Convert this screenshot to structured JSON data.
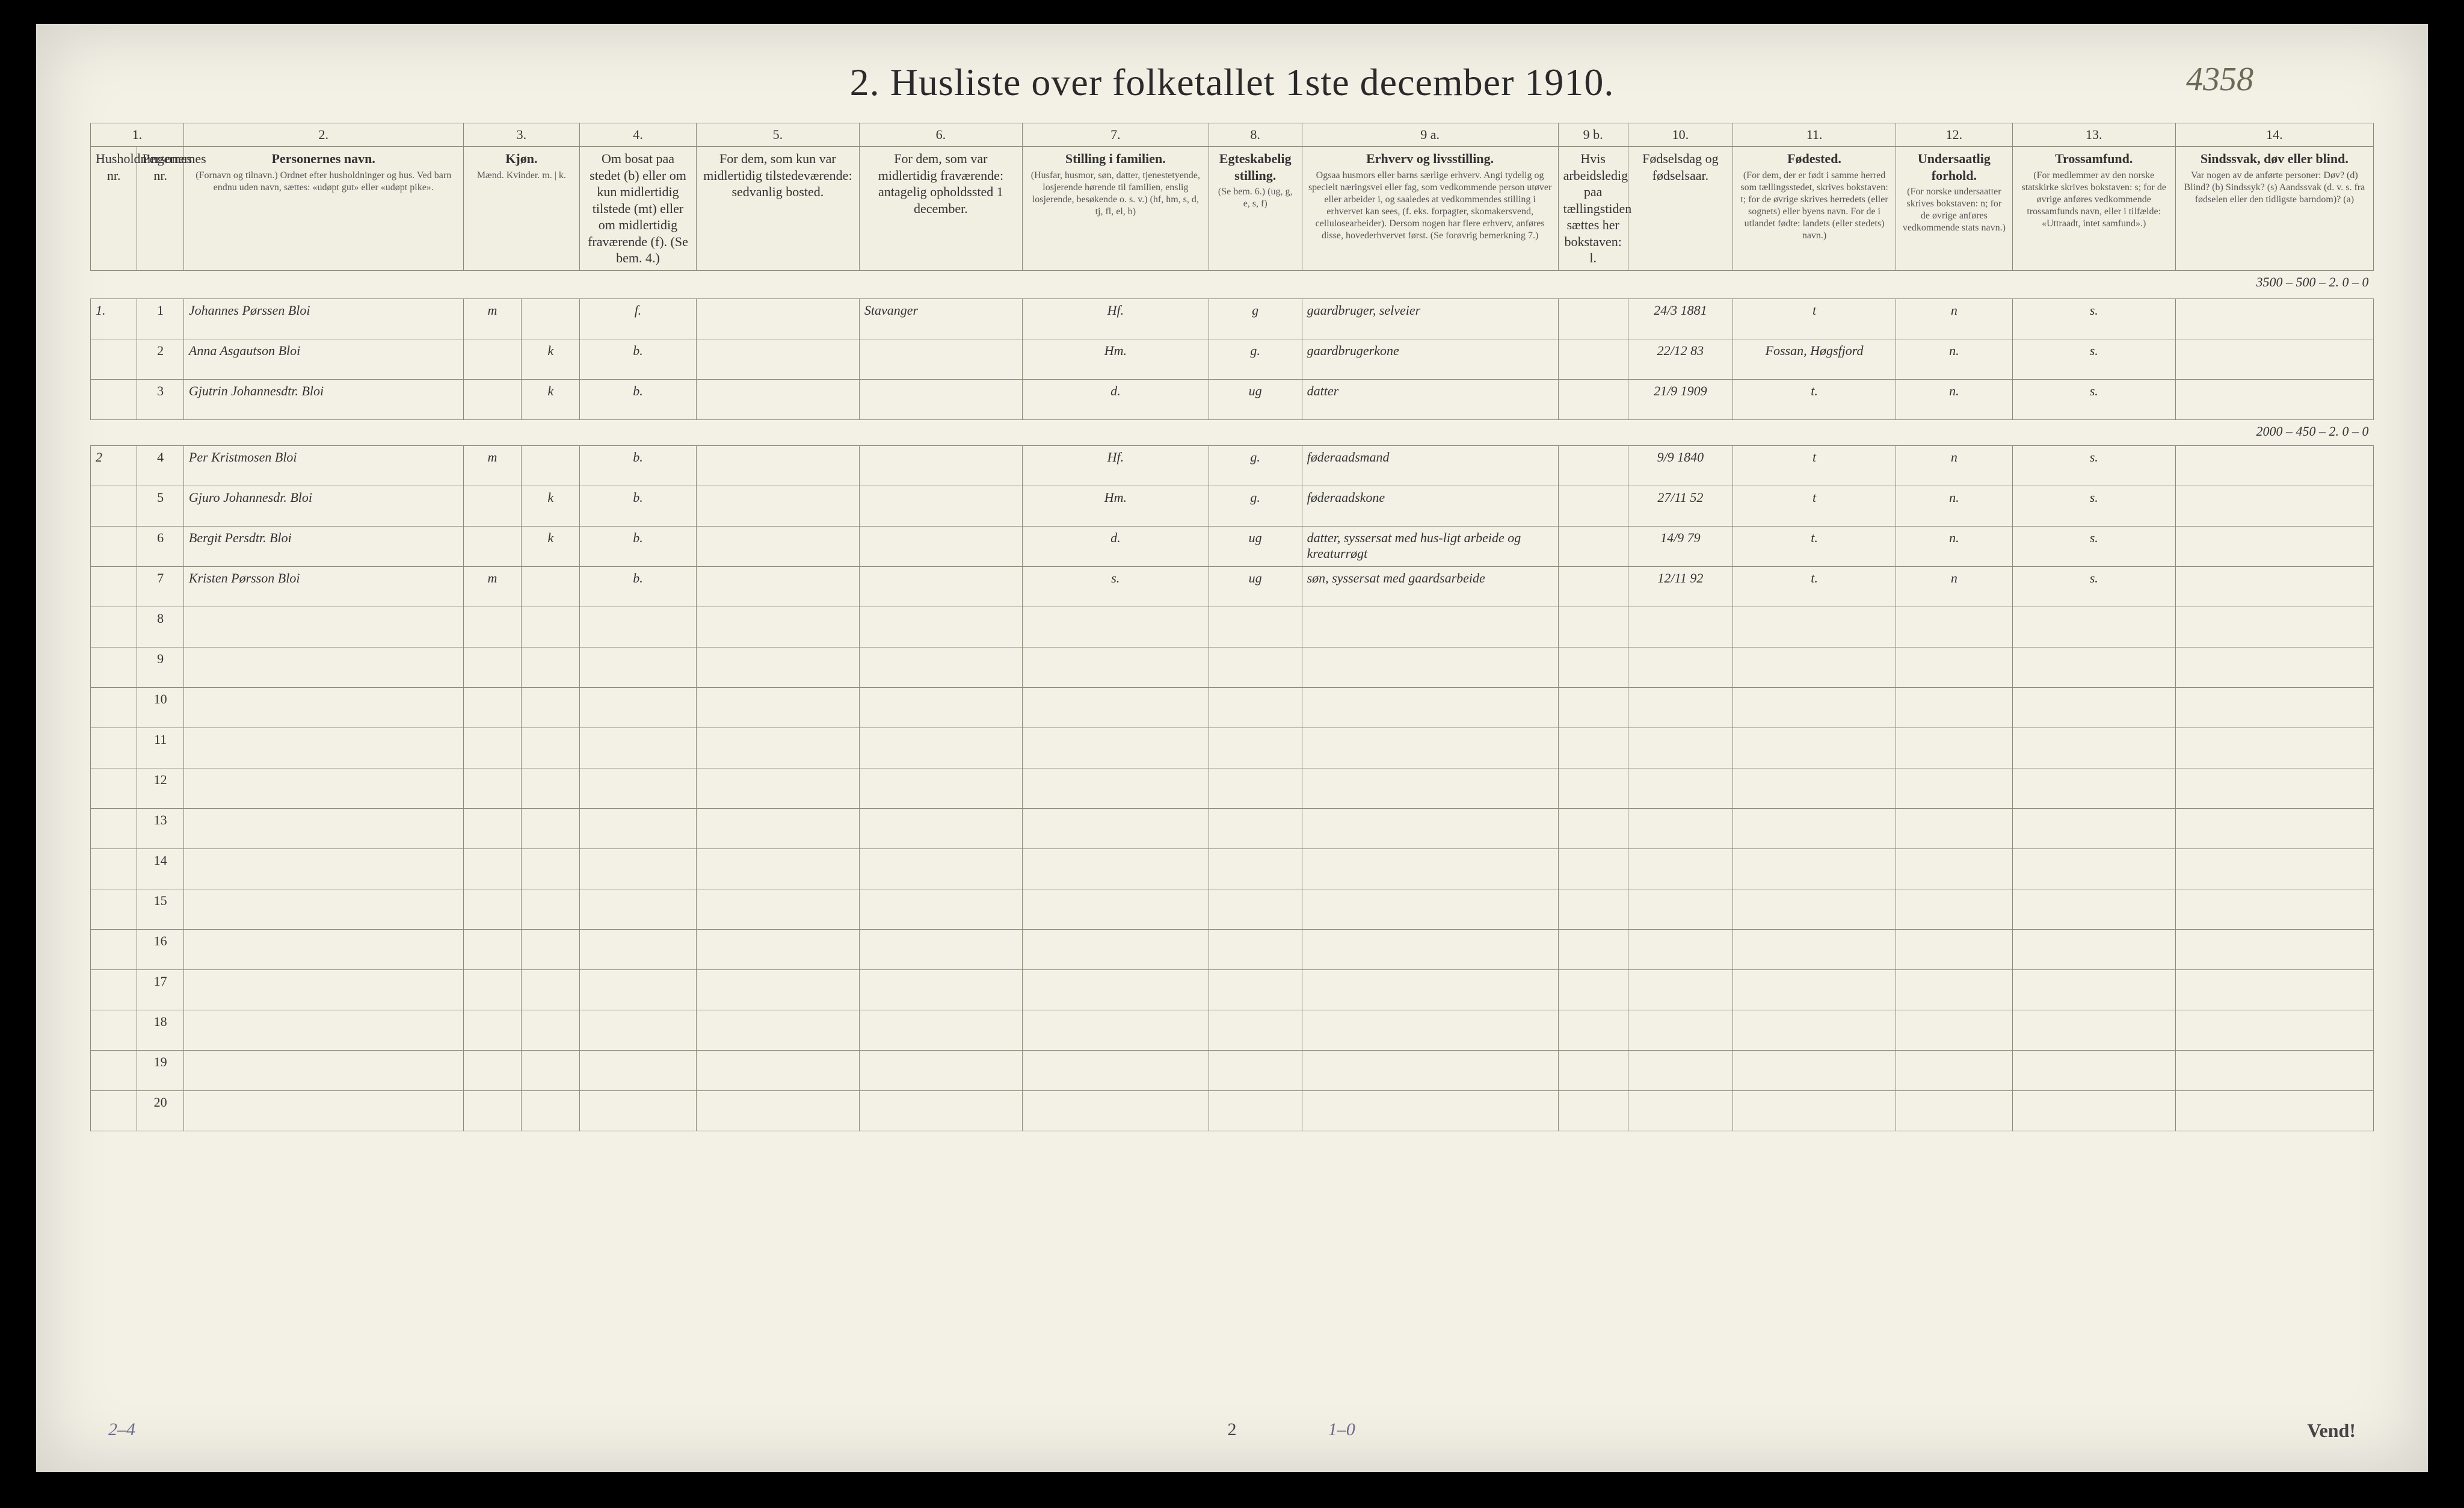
{
  "page": {
    "title": "2.  Husliste over folketallet 1ste december 1910.",
    "marginal_number": "4358",
    "footer_left": "2–4",
    "footer_mid_left": "1–0",
    "footer_center": "2",
    "footer_right": "Vend!",
    "colors": {
      "paper": "#f3f0e6",
      "rule": "#8a8a7a",
      "ink": "#2b2b2b",
      "pencil": "#6a6a88"
    }
  },
  "columns": {
    "numbers": [
      "1.",
      "",
      "2.",
      "3.",
      "",
      "4.",
      "5.",
      "6.",
      "7.",
      "8.",
      "9 a.",
      "9 b.",
      "10.",
      "11.",
      "12.",
      "13.",
      "14."
    ],
    "heads": {
      "c1": "Husholdningernes nr.",
      "c1b": "Personernes nr.",
      "c2": "Personernes navn.",
      "c2_sub": "(Fornavn og tilnavn.) Ordnet efter husholdninger og hus. Ved barn endnu uden navn, sættes: «udøpt gut» eller «udøpt pike».",
      "c3": "Kjøn.",
      "c3_sub": "Mænd.  Kvinder.  m. | k.",
      "c4": "Om bosat paa stedet (b) eller om kun midlertidig tilstede (mt) eller om midlertidig fraværende (f). (Se bem. 4.)",
      "c5": "For dem, som kun var midlertidig tilstedeværende: sedvanlig bosted.",
      "c6": "For dem, som var midlertidig fraværende: antagelig opholdssted 1 december.",
      "c7": "Stilling i familien.",
      "c7_sub": "(Husfar, husmor, søn, datter, tjenestetyende, losjerende hørende til familien, enslig losjerende, besøkende o. s. v.)  (hf, hm, s, d, tj, fl, el, b)",
      "c8": "Egteskabelig stilling.",
      "c8_sub": "(Se bem. 6.)  (ug, g, e, s, f)",
      "c9a": "Erhverv og livsstilling.",
      "c9a_sub": "Ogsaa husmors eller barns særlige erhverv. Angi tydelig og specielt næringsvei eller fag, som vedkommende person utøver eller arbeider i, og saaledes at vedkommendes stilling i erhvervet kan sees, (f. eks. forpagter, skomakersvend, cellulosearbeider). Dersom nogen har flere erhverv, anføres disse, hovederhvervet først. (Se forøvrig bemerkning 7.)",
      "c9b": "Hvis arbeidsledig paa tællingstiden sættes her bokstaven: l.",
      "c10": "Fødselsdag og fødselsaar.",
      "c11": "Fødested.",
      "c11_sub": "(For dem, der er født i samme herred som tællingsstedet, skrives bokstaven: t; for de øvrige skrives herredets (eller sognets) eller byens navn. For de i utlandet fødte: landets (eller stedets) navn.)",
      "c12": "Undersaatlig forhold.",
      "c12_sub": "(For norske undersaatter skrives bokstaven: n; for de øvrige anføres vedkommende stats navn.)",
      "c13": "Trossamfund.",
      "c13_sub": "(For medlemmer av den norske statskirke skrives bokstaven: s; for de øvrige anføres vedkommende trossamfunds navn, eller i tilfælde: «Uttraadt, intet samfund».)",
      "c14": "Sindssvak, døv eller blind.",
      "c14_sub": "Var nogen av de anførte personer: Døv? (d)  Blind? (b)  Sindssyk? (s)  Aandssvak (d. v. s. fra fødselen eller den tidligste barndom)? (a)"
    }
  },
  "annotation_above_row1": "3500 – 500 – 2.  0 – 0",
  "annotation_mid": "2000 – 450 – 2.  0 – 0",
  "rows": [
    {
      "hh": "1.",
      "pn": "1",
      "name": "Johannes Pørssen  Bloi",
      "sex_m": "m",
      "sex_k": "",
      "bosat": "f.",
      "col5": "",
      "col6": "Stavanger",
      "family": "Hf.",
      "marital": "g",
      "occupation": "gaardbruger, selveier",
      "col9b": "",
      "birth": "24/3 1881",
      "birthplace": "t",
      "nation": "n",
      "faith": "s.",
      "col14": ""
    },
    {
      "hh": "",
      "pn": "2",
      "name": "Anna Asgautson   Bloi",
      "sex_m": "",
      "sex_k": "k",
      "bosat": "b.",
      "col5": "",
      "col6": "",
      "family": "Hm.",
      "marital": "g.",
      "occupation": "gaardbrugerkone",
      "col9b": "",
      "birth": "22/12 83",
      "birthplace": "Fossan, Høgsfjord",
      "nation": "n.",
      "faith": "s.",
      "col14": ""
    },
    {
      "hh": "",
      "pn": "3",
      "name": "Gjutrin Johannesdtr.  Bloi",
      "sex_m": "",
      "sex_k": "k",
      "bosat": "b.",
      "col5": "",
      "col6": "",
      "family": "d.",
      "marital": "ug",
      "occupation": "datter",
      "col9b": "",
      "birth": "21/9 1909",
      "birthplace": "t.",
      "nation": "n.",
      "faith": "s.",
      "col14": ""
    },
    {
      "hh": "2",
      "pn": "4",
      "name": "Per Kristmosen  Bloi",
      "sex_m": "m",
      "sex_k": "",
      "bosat": "b.",
      "col5": "",
      "col6": "",
      "family": "Hf.",
      "marital": "g.",
      "occupation": "føderaadsmand",
      "col9b": "",
      "birth": "9/9 1840",
      "birthplace": "t",
      "nation": "n",
      "faith": "s.",
      "col14": ""
    },
    {
      "hh": "",
      "pn": "5",
      "name": "Gjuro Johannesdr.  Bloi",
      "sex_m": "",
      "sex_k": "k",
      "bosat": "b.",
      "col5": "",
      "col6": "",
      "family": "Hm.",
      "marital": "g.",
      "occupation": "føderaadskone",
      "col9b": "",
      "birth": "27/11 52",
      "birthplace": "t",
      "nation": "n.",
      "faith": "s.",
      "col14": ""
    },
    {
      "hh": "",
      "pn": "6",
      "name": "Bergit  Persdtr.   Bloi",
      "sex_m": "",
      "sex_k": "k",
      "bosat": "b.",
      "col5": "",
      "col6": "",
      "family": "d.",
      "marital": "ug",
      "occupation": "datter, syssersat med hus-ligt arbeide og kreaturrøgt",
      "col9b": "",
      "birth": "14/9 79",
      "birthplace": "t.",
      "nation": "n.",
      "faith": "s.",
      "col14": ""
    },
    {
      "hh": "",
      "pn": "7",
      "name": "Kristen  Pørsson  Bloi",
      "sex_m": "m",
      "sex_k": "",
      "bosat": "b.",
      "col5": "",
      "col6": "",
      "family": "s.",
      "marital": "ug",
      "occupation": "søn, syssersat med gaardsarbeide",
      "col9b": "",
      "birth": "12/11 92",
      "birthplace": "t.",
      "nation": "n",
      "faith": "s.",
      "col14": ""
    }
  ],
  "empty_row_numbers": [
    "8",
    "9",
    "10",
    "11",
    "12",
    "13",
    "14",
    "15",
    "16",
    "17",
    "18",
    "19",
    "20"
  ]
}
